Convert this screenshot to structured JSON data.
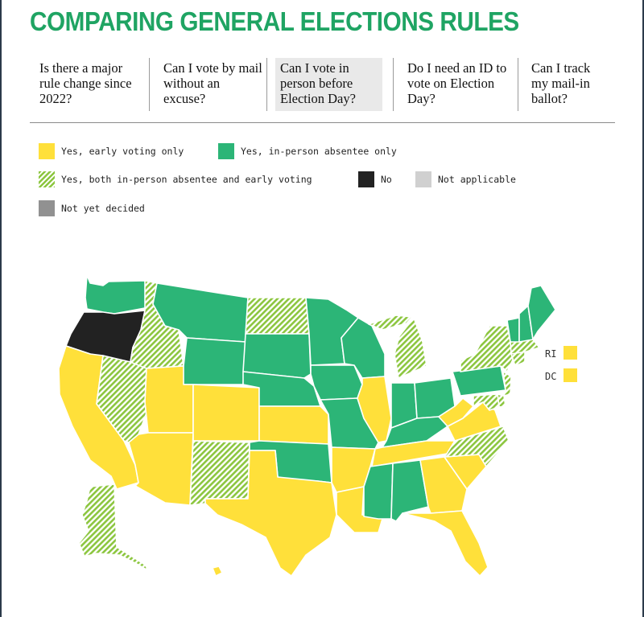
{
  "title": "COMPARING GENERAL ELECTIONS RULES",
  "tabs": [
    {
      "label": "Is there a major rule change since 2022?"
    },
    {
      "label": "Can I vote by mail without an excuse?"
    },
    {
      "label": "Can I vote in person before Election Day?",
      "active": true
    },
    {
      "label": "Do I need an ID to vote on Election Day?"
    },
    {
      "label": "Can I track my mail-in ballot?"
    }
  ],
  "legend": [
    {
      "label": "Yes, early voting only",
      "color": "#ffe03a"
    },
    {
      "label": "Yes, in-person absentee only",
      "color": "#2cb577"
    },
    {
      "label": "Yes, both in-person absentee and early voting",
      "color": "#8cc63f"
    },
    {
      "label": "No",
      "color": "#222222"
    },
    {
      "label": "Not applicable",
      "color": "#d0d0d0"
    },
    {
      "label": "Not yet decided",
      "color": "#919191"
    }
  ],
  "map": {
    "small_states": [
      {
        "label": "RI",
        "category": "early"
      },
      {
        "label": "DC",
        "category": "early"
      }
    ],
    "states": {
      "WA": "inperson",
      "OR": "no",
      "CA": "early",
      "ID": "both",
      "NV": "both",
      "MT": "inperson",
      "WY": "inperson",
      "UT": "early",
      "AZ": "early",
      "CO": "early",
      "NM": "both",
      "ND": "both",
      "SD": "inperson",
      "NE": "inperson",
      "KS": "early",
      "OK": "inperson",
      "TX": "early",
      "MN": "inperson",
      "IA": "inperson",
      "MO": "inperson",
      "AR": "early",
      "LA": "early",
      "WI": "inperson",
      "IL": "early",
      "MI": "both",
      "IN": "inperson",
      "OH": "inperson",
      "KY": "inperson",
      "TN": "early",
      "MS": "inperson",
      "AL": "inperson",
      "GA": "early",
      "FL": "early",
      "SC": "early",
      "NC": "both",
      "VA": "early",
      "WV": "early",
      "PA": "inperson",
      "NY": "both",
      "VT": "inperson",
      "NH": "inperson",
      "ME": "inperson",
      "MA": "both",
      "CT": "both",
      "NJ": "both",
      "DE": "both",
      "MD": "both",
      "AK": "both",
      "HI": "early"
    }
  }
}
